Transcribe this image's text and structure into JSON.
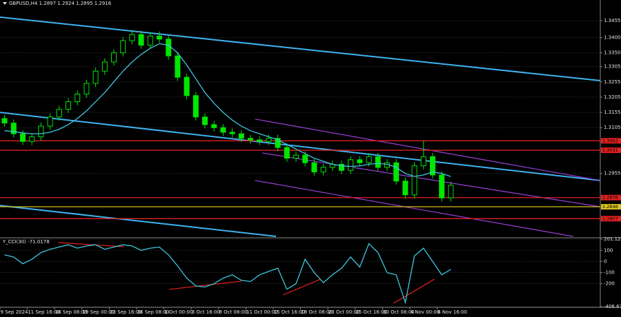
{
  "chart_data": [
    {
      "type": "candlestick",
      "title": "GBPUSD,H4 1.2897 1.2924 1.2895 1.2916",
      "categories": [
        "9 Sep 2024",
        null,
        null,
        "11 Sep 16:00",
        null,
        null,
        "16 Sep 08:00",
        null,
        null,
        "19 Sep 00:00",
        null,
        null,
        "23 Sep 16:00",
        null,
        null,
        "26 Sep 08:00",
        null,
        null,
        "1 Oct 00:00",
        null,
        null,
        "3 Oct 16:00",
        null,
        null,
        "8 Oct 08:00",
        null,
        null,
        "11 Oct 00:00",
        null,
        null,
        "15 Oct 16:00",
        null,
        null,
        "18 Oct 08:00",
        null,
        null,
        "23 Oct 00:00",
        null,
        null,
        "25 Oct 16:00",
        null,
        null,
        "30 Oct 08:00",
        null,
        null,
        "4 Nov 00:00",
        null,
        null,
        "6 Nov 16:00",
        null
      ],
      "open": [
        1.3135,
        1.312,
        1.3085,
        1.306,
        1.3075,
        1.311,
        1.314,
        1.3165,
        1.319,
        1.3215,
        1.325,
        1.329,
        1.332,
        1.335,
        1.339,
        1.341,
        1.3375,
        1.3405,
        1.3395,
        1.334,
        1.327,
        1.321,
        1.314,
        1.3115,
        1.3105,
        1.309,
        1.3085,
        1.307,
        1.3065,
        1.306,
        1.307,
        1.304,
        1.3005,
        1.3015,
        1.299,
        1.296,
        1.2975,
        1.2985,
        1.2965,
        1.3,
        1.299,
        1.301,
        1.2975,
        1.299,
        1.293,
        1.2885,
        1.298,
        1.301,
        1.295,
        1.2875
      ],
      "high": [
        1.3147,
        1.3132,
        1.3097,
        1.3087,
        1.3122,
        1.3152,
        1.3177,
        1.3202,
        1.3227,
        1.3262,
        1.3302,
        1.3332,
        1.3362,
        1.3402,
        1.3425,
        1.3422,
        1.3418,
        1.342,
        1.3407,
        1.3352,
        1.3282,
        1.3222,
        1.3152,
        1.3127,
        1.3117,
        1.3102,
        1.3097,
        1.3082,
        1.3077,
        1.3082,
        1.3082,
        1.3052,
        1.3027,
        1.3027,
        1.3002,
        1.2987,
        1.2997,
        1.2997,
        1.3012,
        1.3012,
        1.3022,
        1.3022,
        1.3002,
        1.3002,
        1.2942,
        1.2992,
        1.3062,
        1.3022,
        1.2962,
        1.2928
      ],
      "low": [
        1.3108,
        1.3073,
        1.3048,
        1.3048,
        1.3063,
        1.3098,
        1.3128,
        1.3153,
        1.3178,
        1.3203,
        1.3238,
        1.3278,
        1.3308,
        1.3338,
        1.3378,
        1.3363,
        1.3363,
        1.3383,
        1.3328,
        1.3258,
        1.3198,
        1.3128,
        1.3103,
        1.3093,
        1.3078,
        1.3073,
        1.3058,
        1.3053,
        1.3048,
        1.3048,
        1.3028,
        1.2993,
        1.2993,
        1.2978,
        1.2948,
        1.2948,
        1.2963,
        1.2953,
        1.2953,
        1.2978,
        1.2978,
        1.2963,
        1.2963,
        1.2918,
        1.2873,
        1.2873,
        1.2968,
        1.2938,
        1.2863,
        1.2863
      ],
      "close": [
        1.312,
        1.3085,
        1.306,
        1.3075,
        1.311,
        1.314,
        1.3165,
        1.319,
        1.3215,
        1.325,
        1.329,
        1.332,
        1.335,
        1.339,
        1.341,
        1.3375,
        1.3405,
        1.3395,
        1.334,
        1.327,
        1.321,
        1.314,
        1.3115,
        1.3105,
        1.309,
        1.3085,
        1.307,
        1.3065,
        1.306,
        1.307,
        1.304,
        1.3005,
        1.3015,
        1.299,
        1.296,
        1.2975,
        1.2985,
        1.2965,
        1.3,
        1.299,
        1.301,
        1.2975,
        1.299,
        1.293,
        1.2885,
        1.298,
        1.301,
        1.295,
        1.2875,
        1.2916
      ],
      "up_color": "#00e600",
      "down_color": "#00e600",
      "series": [
        {
          "color": "#3ec7e0",
          "values": [
            1.3095,
            1.3092,
            1.3088,
            1.3085,
            1.3085,
            1.309,
            1.31,
            1.3115,
            1.3135,
            1.316,
            1.319,
            1.322,
            1.3255,
            1.329,
            1.332,
            1.3345,
            1.3365,
            1.338,
            1.3375,
            1.335,
            1.331,
            1.3265,
            1.322,
            1.3185,
            1.3155,
            1.313,
            1.311,
            1.3095,
            1.3085,
            1.3075,
            1.3065,
            1.305,
            1.3035,
            1.302,
            1.3005,
            1.2995,
            1.2985,
            1.298,
            1.2978,
            1.298,
            1.2985,
            1.2988,
            1.2985,
            1.2975,
            1.2955,
            1.2945,
            1.295,
            1.296,
            1.2955,
            1.2945
          ]
        }
      ],
      "trendlines": [
        {
          "color": "#3fb4f0",
          "x": [
            -0.5,
            65.4
          ],
          "y": [
            1.3467,
            1.3259
          ]
        },
        {
          "color": "#3fb4f0",
          "x": [
            -0.5,
            65.4
          ],
          "y": [
            1.3155,
            1.2932
          ]
        },
        {
          "color": "#3fb4f0",
          "x": [
            -0.5,
            29.8
          ],
          "y": [
            1.285,
            1.2749
          ]
        },
        {
          "color": "#9b3fd8",
          "x": [
            27.5,
            65.4
          ],
          "y": [
            1.3133,
            1.2932
          ]
        },
        {
          "color": "#9b3fd8",
          "x": [
            28.3,
            65.4
          ],
          "y": [
            1.3022,
            1.2846
          ]
        },
        {
          "color": "#9b3fd8",
          "x": [
            27.5,
            62.4
          ],
          "y": [
            1.2932,
            1.2749
          ]
        }
      ],
      "levels": [
        {
          "value": 1.3062,
          "color": "#e02020"
        },
        {
          "value": 1.3031,
          "color": "#e02020"
        },
        {
          "value": 1.2876,
          "color": "#e02020"
        },
        {
          "value": 1.2846,
          "color": "#d8c020"
        },
        {
          "value": 1.2807,
          "color": "#e02020"
        }
      ],
      "ylim": [
        1.2749,
        1.3505
      ],
      "yticks": [
        1.3455,
        {
          "value": 1.34,
          "label": "1.3400"
        },
        {
          "value": 1.335,
          "label": "1.3350"
        },
        1.3305,
        1.3255,
        1.3205,
        1.3155,
        1.3105,
        1.2955
      ],
      "grid": true
    },
    {
      "type": "line",
      "title": "Y_CCI(30) -71.0178",
      "color": "#3ec7e0",
      "values": [
        60,
        40,
        -20,
        20,
        80,
        110,
        130,
        150,
        120,
        140,
        150,
        110,
        130,
        150,
        140,
        100,
        120,
        130,
        60,
        -40,
        -150,
        -220,
        -230,
        -200,
        -150,
        -120,
        -170,
        -180,
        -120,
        -90,
        -60,
        -250,
        -200,
        20,
        -100,
        -190,
        -120,
        -60,
        40,
        -50,
        160,
        80,
        -100,
        -120,
        -370,
        50,
        120,
        0,
        -120,
        -71.0178
      ],
      "trendlines": [
        {
          "color": "#e02020",
          "x": [
            5.9,
            13.1
          ],
          "y": [
            170,
            133
          ]
        },
        {
          "color": "#e02020",
          "x": [
            18.1,
            26.0
          ],
          "y": [
            -251,
            -177
          ]
        },
        {
          "color": "#e02020",
          "x": [
            30.6,
            34.7
          ],
          "y": [
            -301,
            -159
          ]
        },
        {
          "color": "#e02020",
          "x": [
            42.7,
            47.2
          ],
          "y": [
            -376,
            -159
          ]
        }
      ],
      "ylim": [
        -406.6772,
        201.1248
      ],
      "yticks": [
        201.1248,
        100,
        0,
        -100,
        -200,
        -406.6772
      ],
      "grid": true
    }
  ]
}
